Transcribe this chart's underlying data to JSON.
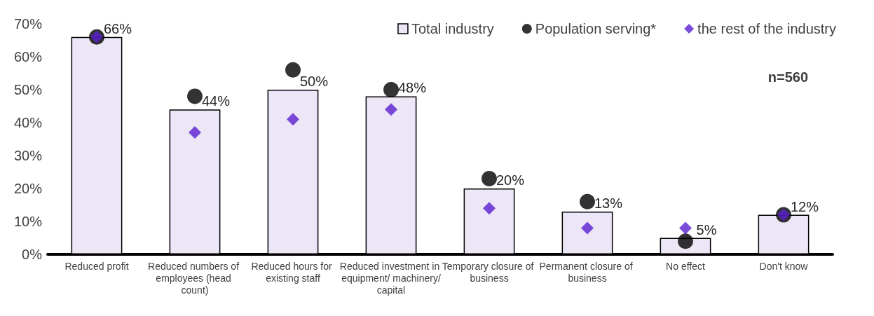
{
  "chart_data": {
    "type": "bar",
    "categories": [
      "Reduced profit",
      "Reduced numbers of employees (head count)",
      "Reduced hours for existing staff",
      "Reduced investment in equipment/ machinery/capital",
      "Temporary closure of business",
      "Permanent closure of business",
      "No effect",
      "Don't know"
    ],
    "series": [
      {
        "name": "Total industry",
        "type": "bar",
        "color": "#ece6f6",
        "values": [
          66,
          44,
          50,
          48,
          20,
          13,
          5,
          12
        ],
        "value_labels": [
          "66%",
          "44%",
          "50%",
          "48%",
          "20%",
          "13%",
          "5%",
          "12%"
        ]
      },
      {
        "name": "Population serving*",
        "type": "scatter",
        "marker": "circle",
        "color": "#000000",
        "values": [
          66,
          48,
          56,
          50,
          23,
          16,
          4,
          12
        ]
      },
      {
        "name": "the rest of the industry",
        "type": "scatter",
        "marker": "diamond",
        "color": "#5b1fd1",
        "values": [
          66,
          37,
          41,
          44,
          14,
          8,
          8,
          12
        ]
      }
    ],
    "ylim": [
      0,
      70
    ],
    "yticks": [
      {
        "value": 0,
        "label": "0%"
      },
      {
        "value": 10,
        "label": "10%"
      },
      {
        "value": 20,
        "label": "20%"
      },
      {
        "value": 30,
        "label": "30%"
      },
      {
        "value": 40,
        "label": "40%"
      },
      {
        "value": 50,
        "label": "50%"
      },
      {
        "value": 60,
        "label": "60%"
      },
      {
        "value": 70,
        "label": "70%"
      }
    ],
    "annotations": [
      "n=560"
    ],
    "legend": "top right",
    "grid": false
  }
}
